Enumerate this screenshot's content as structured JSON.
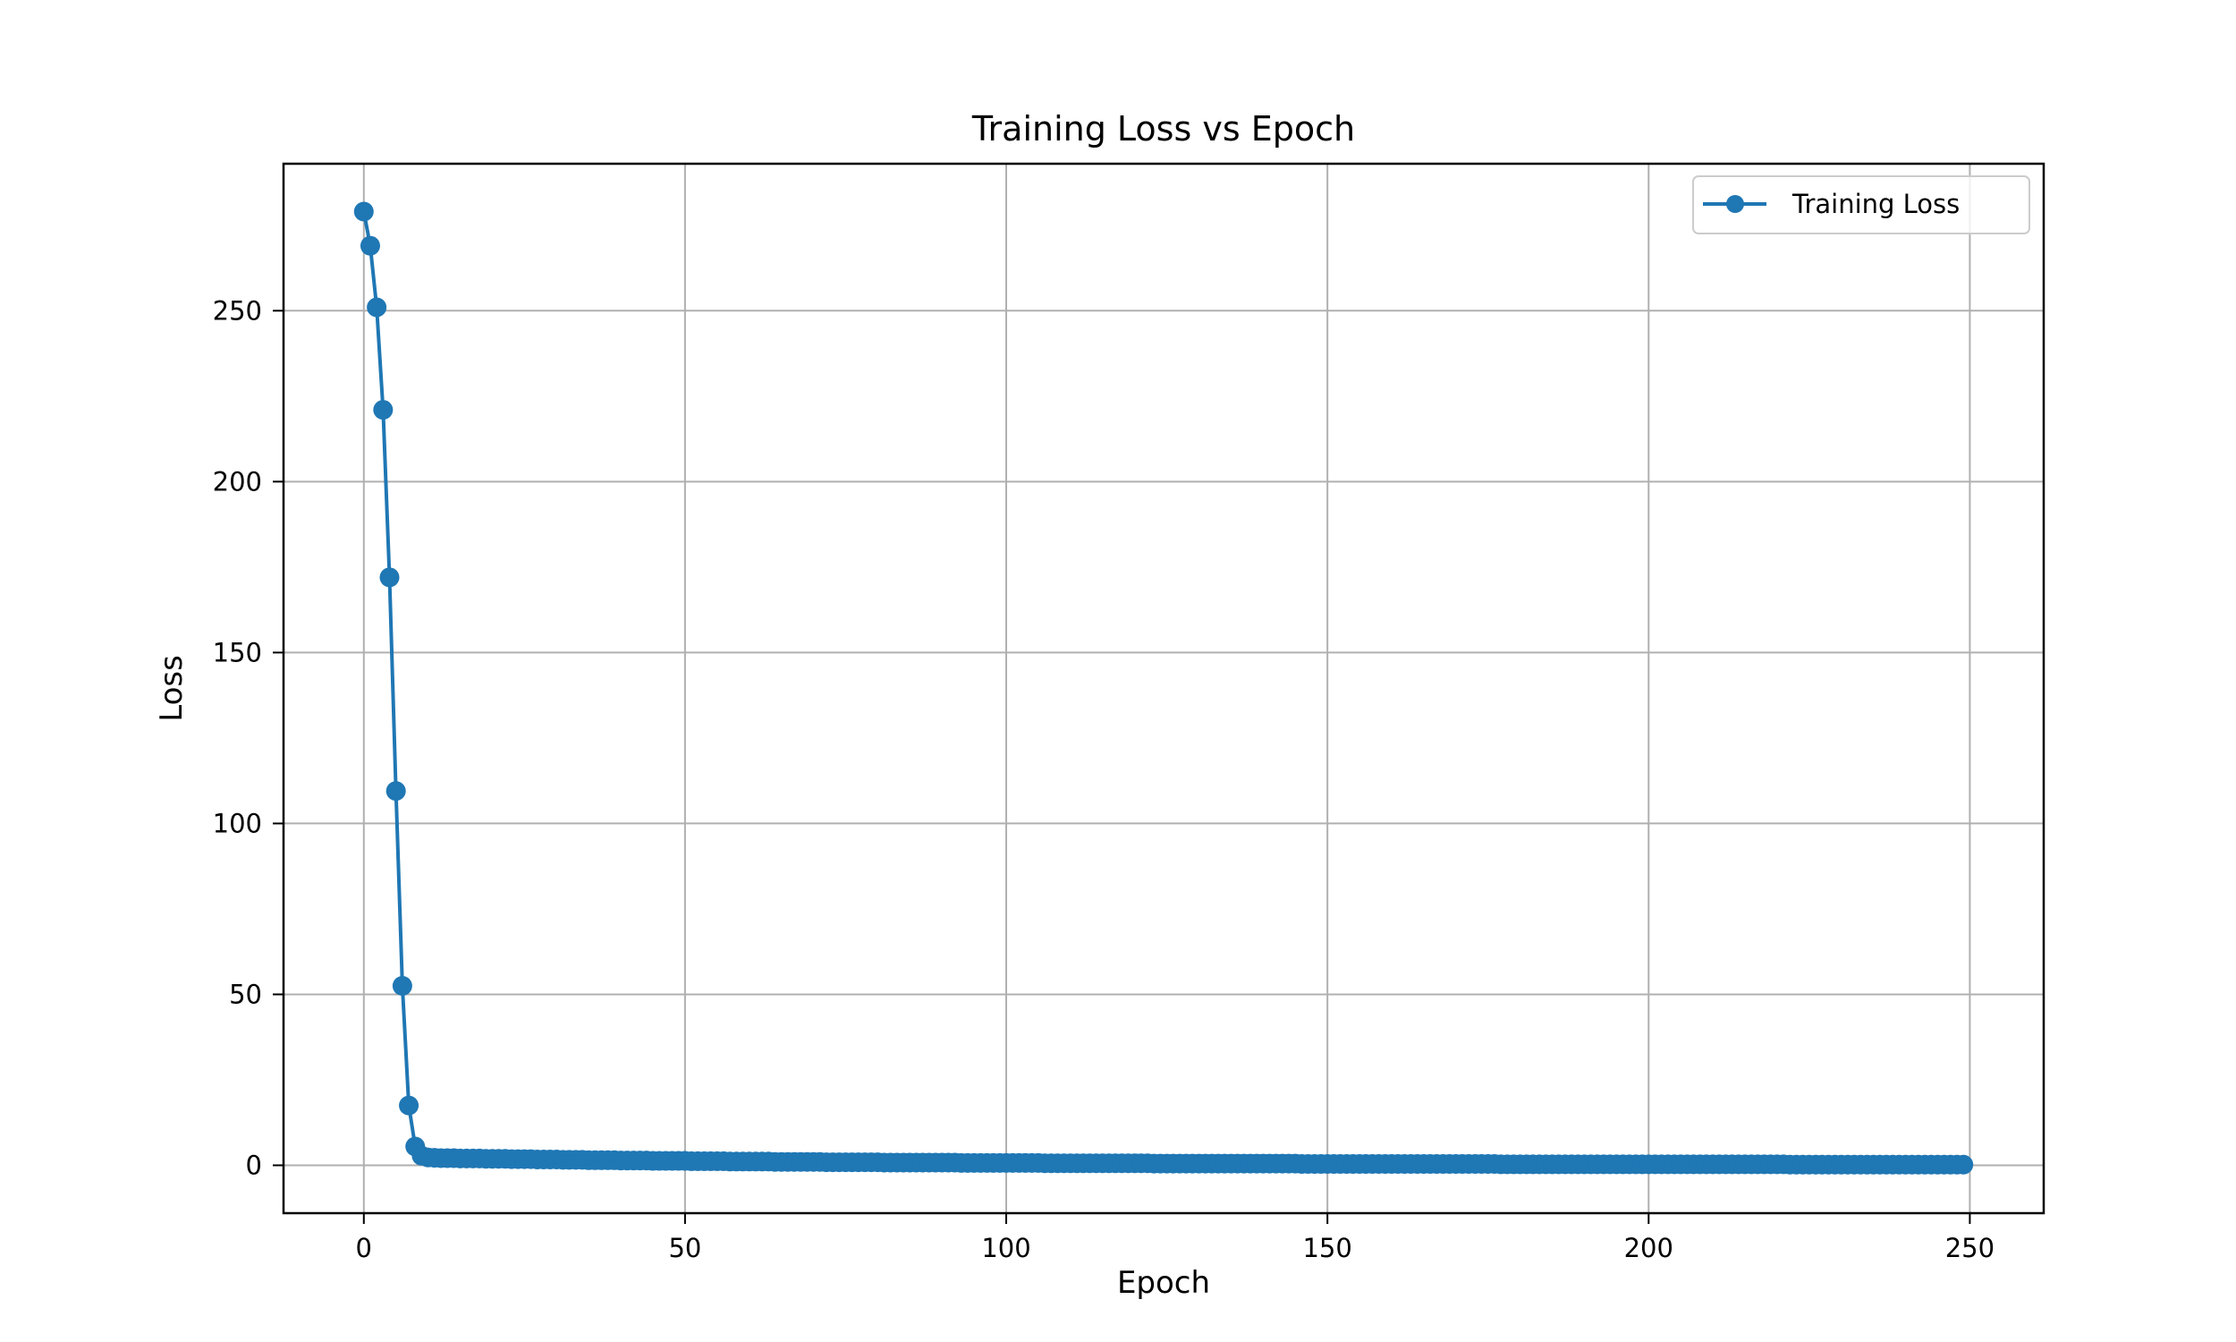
{
  "chart_data": {
    "type": "line",
    "title": "Training Loss vs Epoch",
    "xlabel": "Epoch",
    "ylabel": "Loss",
    "xlim": [
      -12.5,
      261.5
    ],
    "ylim": [
      -14,
      293
    ],
    "xticks": [
      0,
      50,
      100,
      150,
      200,
      250
    ],
    "yticks": [
      0,
      50,
      100,
      150,
      200,
      250
    ],
    "grid": true,
    "legend": {
      "position": "top-right",
      "entries": [
        "Training Loss"
      ]
    },
    "colors": {
      "series": "#1f77b4",
      "grid": "#b0b0b0",
      "axes": "#000000"
    },
    "series": [
      {
        "name": "Training Loss",
        "marker": "circle",
        "points": [
          [
            0,
            279
          ],
          [
            1,
            269
          ],
          [
            2,
            251
          ],
          [
            3,
            221
          ],
          [
            4,
            172
          ],
          [
            5,
            109.5
          ],
          [
            6,
            52.5
          ],
          [
            7,
            17.5
          ],
          [
            8,
            5.5
          ],
          [
            9,
            2.8
          ],
          [
            10,
            2.3
          ],
          [
            11,
            2.2
          ],
          [
            12,
            2.1
          ],
          [
            13,
            2.1
          ],
          [
            14,
            2.1
          ],
          [
            15,
            2.0
          ],
          [
            16,
            2.0
          ],
          [
            17,
            2.0
          ],
          [
            18,
            2.0
          ],
          [
            19,
            1.9
          ],
          [
            20,
            1.9
          ],
          [
            21,
            1.9
          ],
          [
            22,
            1.9
          ],
          [
            23,
            1.8
          ],
          [
            24,
            1.8
          ],
          [
            25,
            1.8
          ],
          [
            26,
            1.8
          ],
          [
            27,
            1.7
          ],
          [
            28,
            1.7
          ],
          [
            29,
            1.7
          ],
          [
            30,
            1.7
          ],
          [
            31,
            1.6
          ],
          [
            32,
            1.6
          ],
          [
            33,
            1.6
          ],
          [
            34,
            1.6
          ],
          [
            35,
            1.5
          ],
          [
            36,
            1.5
          ],
          [
            37,
            1.5
          ],
          [
            38,
            1.5
          ],
          [
            39,
            1.5
          ],
          [
            40,
            1.4
          ],
          [
            41,
            1.4
          ],
          [
            42,
            1.4
          ],
          [
            43,
            1.4
          ],
          [
            44,
            1.4
          ],
          [
            45,
            1.3
          ],
          [
            46,
            1.3
          ],
          [
            47,
            1.3
          ],
          [
            48,
            1.3
          ],
          [
            49,
            1.3
          ],
          [
            50,
            1.3
          ],
          [
            51,
            1.2
          ],
          [
            52,
            1.2
          ],
          [
            53,
            1.2
          ],
          [
            54,
            1.2
          ],
          [
            55,
            1.2
          ],
          [
            56,
            1.2
          ],
          [
            57,
            1.1
          ],
          [
            58,
            1.1
          ],
          [
            59,
            1.1
          ],
          [
            60,
            1.1
          ],
          [
            61,
            1.1
          ],
          [
            62,
            1.1
          ],
          [
            63,
            1.1
          ],
          [
            64,
            1.0
          ],
          [
            65,
            1.0
          ],
          [
            66,
            1.0
          ],
          [
            67,
            1.0
          ],
          [
            68,
            1.0
          ],
          [
            69,
            1.0
          ],
          [
            70,
            1.0
          ],
          [
            71,
            1.0
          ],
          [
            72,
            0.9
          ],
          [
            73,
            0.9
          ],
          [
            74,
            0.9
          ],
          [
            75,
            0.9
          ],
          [
            76,
            0.9
          ],
          [
            77,
            0.9
          ],
          [
            78,
            0.9
          ],
          [
            79,
            0.9
          ],
          [
            80,
            0.9
          ],
          [
            81,
            0.8
          ],
          [
            82,
            0.8
          ],
          [
            83,
            0.8
          ],
          [
            84,
            0.8
          ],
          [
            85,
            0.8
          ],
          [
            86,
            0.8
          ],
          [
            87,
            0.8
          ],
          [
            88,
            0.8
          ],
          [
            89,
            0.8
          ],
          [
            90,
            0.8
          ],
          [
            91,
            0.8
          ],
          [
            92,
            0.8
          ],
          [
            93,
            0.7
          ],
          [
            94,
            0.7
          ],
          [
            95,
            0.7
          ],
          [
            96,
            0.7
          ],
          [
            97,
            0.7
          ],
          [
            98,
            0.7
          ],
          [
            99,
            0.7
          ],
          [
            100,
            0.7
          ],
          [
            101,
            0.7
          ],
          [
            102,
            0.7
          ],
          [
            103,
            0.7
          ],
          [
            104,
            0.7
          ],
          [
            105,
            0.7
          ],
          [
            106,
            0.6
          ],
          [
            107,
            0.6
          ],
          [
            108,
            0.6
          ],
          [
            109,
            0.6
          ],
          [
            110,
            0.6
          ],
          [
            111,
            0.6
          ],
          [
            112,
            0.6
          ],
          [
            113,
            0.6
          ],
          [
            114,
            0.6
          ],
          [
            115,
            0.6
          ],
          [
            116,
            0.6
          ],
          [
            117,
            0.6
          ],
          [
            118,
            0.6
          ],
          [
            119,
            0.6
          ],
          [
            120,
            0.6
          ],
          [
            121,
            0.6
          ],
          [
            122,
            0.6
          ],
          [
            123,
            0.5
          ],
          [
            124,
            0.5
          ],
          [
            125,
            0.5
          ],
          [
            126,
            0.5
          ],
          [
            127,
            0.5
          ],
          [
            128,
            0.5
          ],
          [
            129,
            0.5
          ],
          [
            130,
            0.5
          ],
          [
            131,
            0.5
          ],
          [
            132,
            0.5
          ],
          [
            133,
            0.5
          ],
          [
            134,
            0.5
          ],
          [
            135,
            0.5
          ],
          [
            136,
            0.5
          ],
          [
            137,
            0.5
          ],
          [
            138,
            0.5
          ],
          [
            139,
            0.5
          ],
          [
            140,
            0.5
          ],
          [
            141,
            0.5
          ],
          [
            142,
            0.5
          ],
          [
            143,
            0.5
          ],
          [
            144,
            0.5
          ],
          [
            145,
            0.5
          ],
          [
            146,
            0.4
          ],
          [
            147,
            0.4
          ],
          [
            148,
            0.4
          ],
          [
            149,
            0.4
          ],
          [
            150,
            0.4
          ],
          [
            151,
            0.4
          ],
          [
            152,
            0.4
          ],
          [
            153,
            0.4
          ],
          [
            154,
            0.4
          ],
          [
            155,
            0.4
          ],
          [
            156,
            0.4
          ],
          [
            157,
            0.4
          ],
          [
            158,
            0.4
          ],
          [
            159,
            0.4
          ],
          [
            160,
            0.4
          ],
          [
            161,
            0.4
          ],
          [
            162,
            0.4
          ],
          [
            163,
            0.4
          ],
          [
            164,
            0.4
          ],
          [
            165,
            0.4
          ],
          [
            166,
            0.4
          ],
          [
            167,
            0.4
          ],
          [
            168,
            0.4
          ],
          [
            169,
            0.4
          ],
          [
            170,
            0.4
          ],
          [
            171,
            0.4
          ],
          [
            172,
            0.4
          ],
          [
            173,
            0.4
          ],
          [
            174,
            0.4
          ],
          [
            175,
            0.4
          ],
          [
            176,
            0.4
          ],
          [
            177,
            0.3
          ],
          [
            178,
            0.3
          ],
          [
            179,
            0.3
          ],
          [
            180,
            0.3
          ],
          [
            181,
            0.3
          ],
          [
            182,
            0.3
          ],
          [
            183,
            0.3
          ],
          [
            184,
            0.3
          ],
          [
            185,
            0.3
          ],
          [
            186,
            0.3
          ],
          [
            187,
            0.3
          ],
          [
            188,
            0.3
          ],
          [
            189,
            0.3
          ],
          [
            190,
            0.3
          ],
          [
            191,
            0.3
          ],
          [
            192,
            0.3
          ],
          [
            193,
            0.3
          ],
          [
            194,
            0.3
          ],
          [
            195,
            0.3
          ],
          [
            196,
            0.3
          ],
          [
            197,
            0.3
          ],
          [
            198,
            0.3
          ],
          [
            199,
            0.3
          ],
          [
            200,
            0.3
          ],
          [
            201,
            0.3
          ],
          [
            202,
            0.3
          ],
          [
            203,
            0.3
          ],
          [
            204,
            0.3
          ],
          [
            205,
            0.3
          ],
          [
            206,
            0.3
          ],
          [
            207,
            0.3
          ],
          [
            208,
            0.3
          ],
          [
            209,
            0.3
          ],
          [
            210,
            0.3
          ],
          [
            211,
            0.3
          ],
          [
            212,
            0.3
          ],
          [
            213,
            0.3
          ],
          [
            214,
            0.3
          ],
          [
            215,
            0.3
          ],
          [
            216,
            0.3
          ],
          [
            217,
            0.3
          ],
          [
            218,
            0.3
          ],
          [
            219,
            0.3
          ],
          [
            220,
            0.3
          ],
          [
            221,
            0.3
          ],
          [
            222,
            0.2
          ],
          [
            223,
            0.2
          ],
          [
            224,
            0.2
          ],
          [
            225,
            0.2
          ],
          [
            226,
            0.2
          ],
          [
            227,
            0.2
          ],
          [
            228,
            0.2
          ],
          [
            229,
            0.2
          ],
          [
            230,
            0.2
          ],
          [
            231,
            0.2
          ],
          [
            232,
            0.2
          ],
          [
            233,
            0.2
          ],
          [
            234,
            0.2
          ],
          [
            235,
            0.2
          ],
          [
            236,
            0.2
          ],
          [
            237,
            0.2
          ],
          [
            238,
            0.2
          ],
          [
            239,
            0.2
          ],
          [
            240,
            0.2
          ],
          [
            241,
            0.2
          ],
          [
            242,
            0.2
          ],
          [
            243,
            0.2
          ],
          [
            244,
            0.2
          ],
          [
            245,
            0.2
          ],
          [
            246,
            0.2
          ],
          [
            247,
            0.2
          ],
          [
            248,
            0.2
          ],
          [
            249,
            0.2
          ]
        ]
      }
    ]
  }
}
